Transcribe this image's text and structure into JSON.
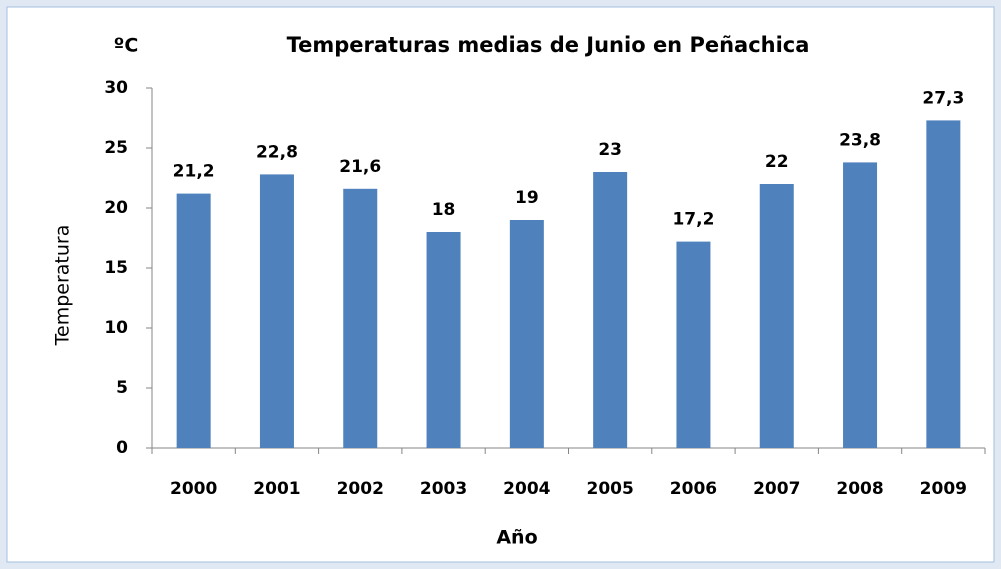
{
  "chart_data": {
    "type": "bar",
    "title": "Temperaturas medias de Junio en Peñachica",
    "unit_label": "ºC",
    "y_label": "Temperatura",
    "x_label": "Año",
    "categories": [
      "2000",
      "2001",
      "2002",
      "2003",
      "2004",
      "2005",
      "2006",
      "2007",
      "2008",
      "2009"
    ],
    "values": [
      21.2,
      22.8,
      21.6,
      18,
      19,
      23,
      17.2,
      22,
      23.8,
      27.3
    ],
    "value_labels": [
      "21,2",
      "22,8",
      "21,6",
      "18",
      "19",
      "23",
      "17,2",
      "22",
      "23,8",
      "27,3"
    ],
    "color": "#4f81bd",
    "ylim": [
      0,
      30
    ],
    "yticks": [
      0,
      5,
      10,
      15,
      20,
      25,
      30
    ],
    "grid": false
  }
}
